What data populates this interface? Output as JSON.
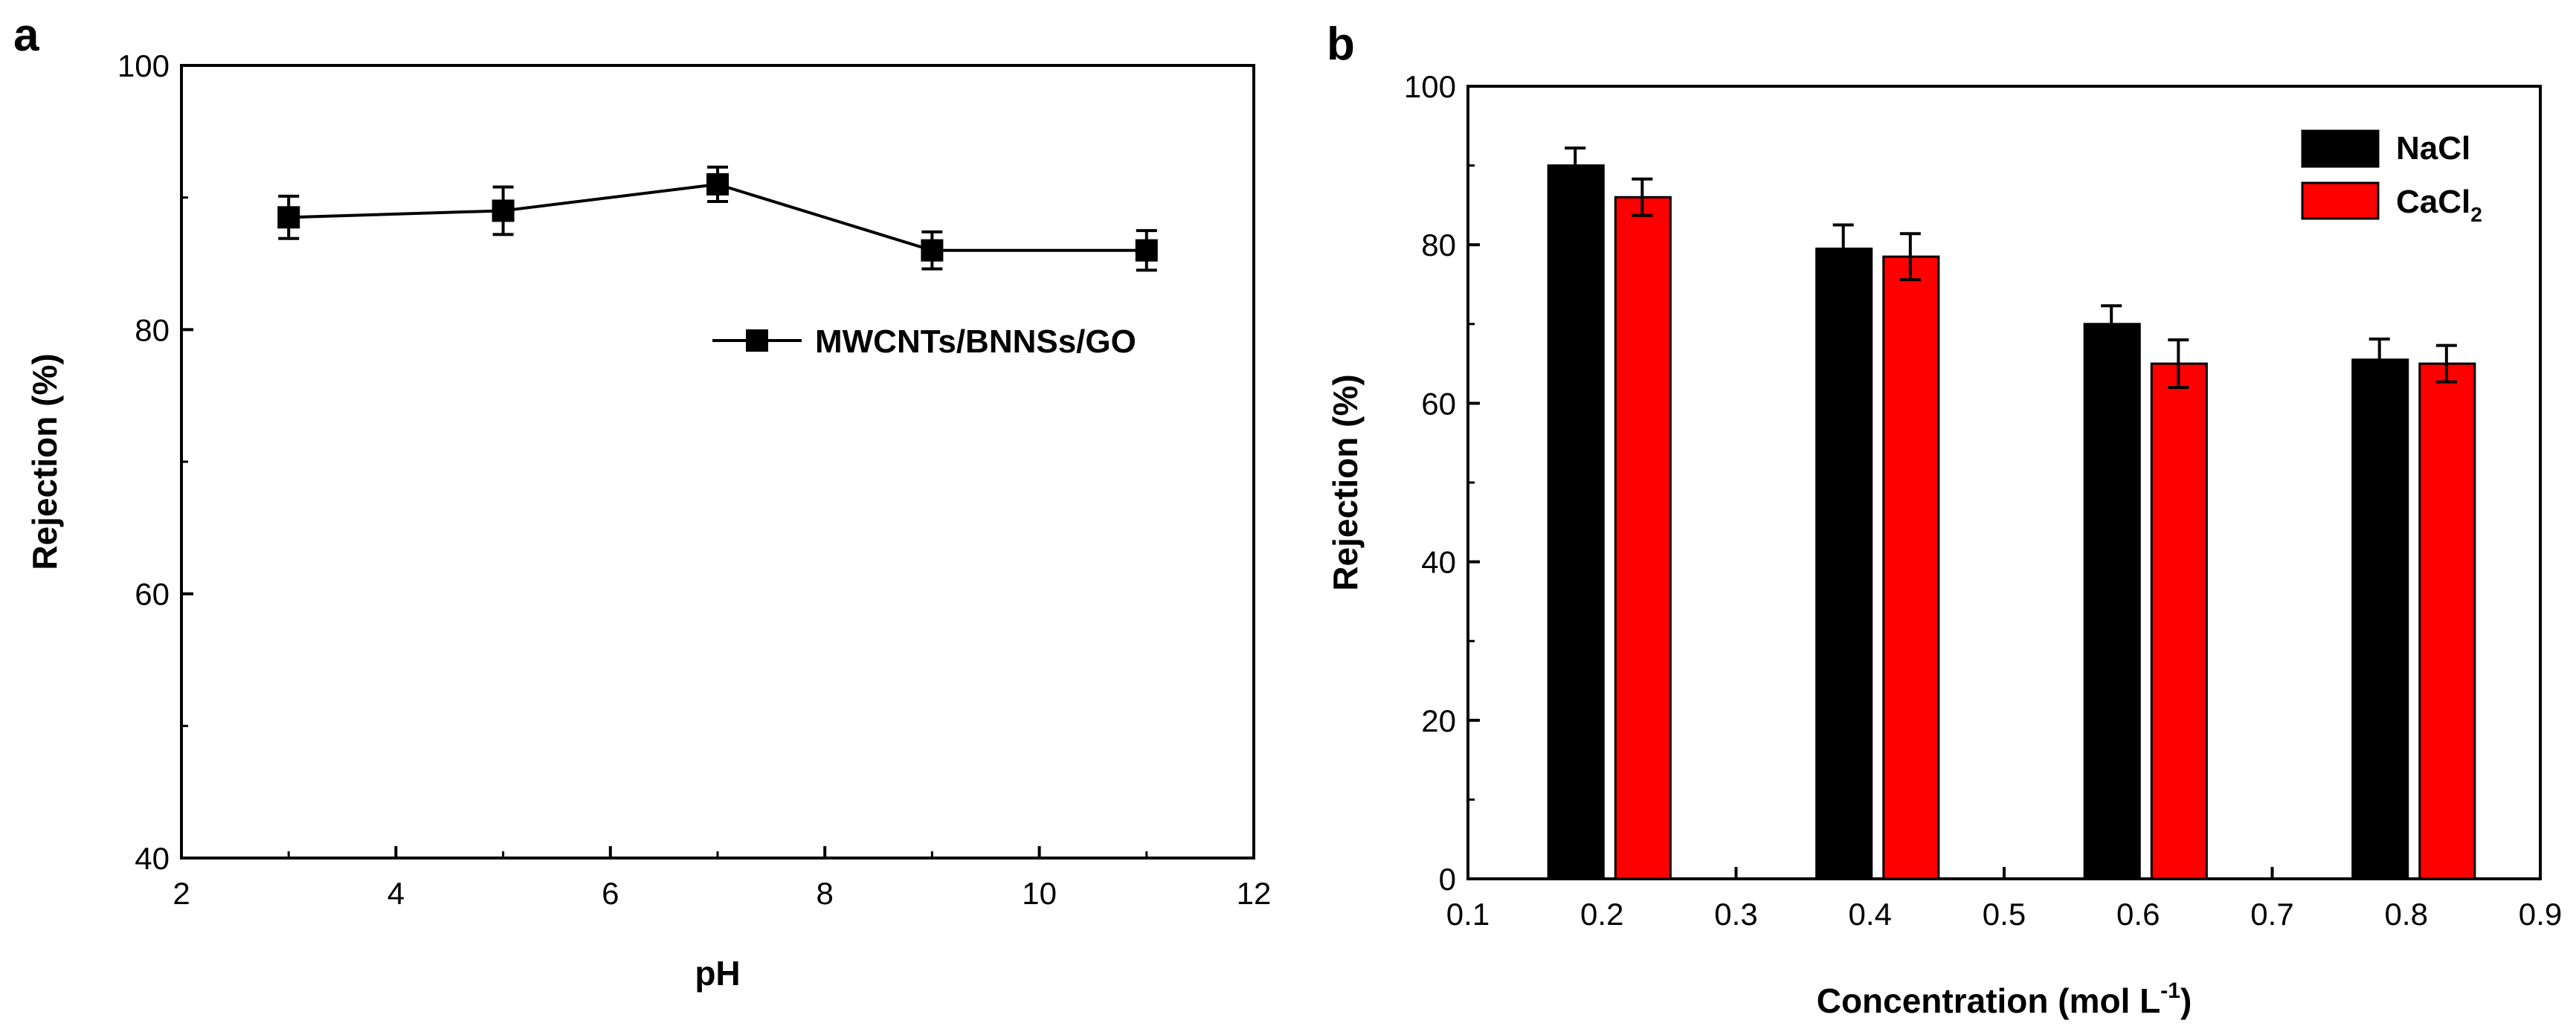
{
  "chart_data": [
    {
      "panel_label": "a",
      "type": "line",
      "title": "",
      "xlabel": "pH",
      "ylabel": "Rejection (%)",
      "xlim": [
        2,
        12
      ],
      "ylim": [
        40,
        100
      ],
      "xticks": [
        2,
        4,
        6,
        8,
        10,
        12
      ],
      "yticks": [
        40,
        60,
        80,
        100
      ],
      "grid": false,
      "legend_position": "center-right",
      "series": [
        {
          "name": "MWCNTs/BNNSs/GO",
          "x": [
            3,
            5,
            7,
            9,
            11
          ],
          "y": [
            88.5,
            89,
            91,
            86,
            86
          ],
          "err": [
            1.6,
            1.8,
            1.3,
            1.4,
            1.5
          ],
          "color": "#000000",
          "marker": "square"
        }
      ]
    },
    {
      "panel_label": "b",
      "type": "bar",
      "title": "",
      "xlabel": "Concentration (mol L",
      "xlabel_sup": "-1",
      "xlabel_end": ")",
      "ylabel": "Rejection (%)",
      "xlim": [
        0.1,
        0.9
      ],
      "ylim": [
        0,
        100
      ],
      "xticks": [
        "0.1",
        "0.2",
        "0.3",
        "0.4",
        "0.5",
        "0.6",
        "0.7",
        "0.8",
        "0.9"
      ],
      "yticks": [
        0,
        20,
        40,
        60,
        80,
        100
      ],
      "grid": false,
      "legend_position": "top-right",
      "categories": [
        0.2,
        0.4,
        0.6,
        0.8
      ],
      "series": [
        {
          "name": "NaCl",
          "legend_main": "NaCl",
          "legend_sub": "",
          "values": [
            90,
            79.5,
            70,
            65.5
          ],
          "err": [
            2.2,
            3.0,
            2.3,
            2.6
          ],
          "color": "#000000"
        },
        {
          "name": "CaCl2",
          "legend_main": "CaCl",
          "legend_sub": "2",
          "values": [
            86,
            78.5,
            65,
            65
          ],
          "err": [
            2.3,
            2.9,
            3.0,
            2.3
          ],
          "color": "#ff0000"
        }
      ]
    }
  ]
}
